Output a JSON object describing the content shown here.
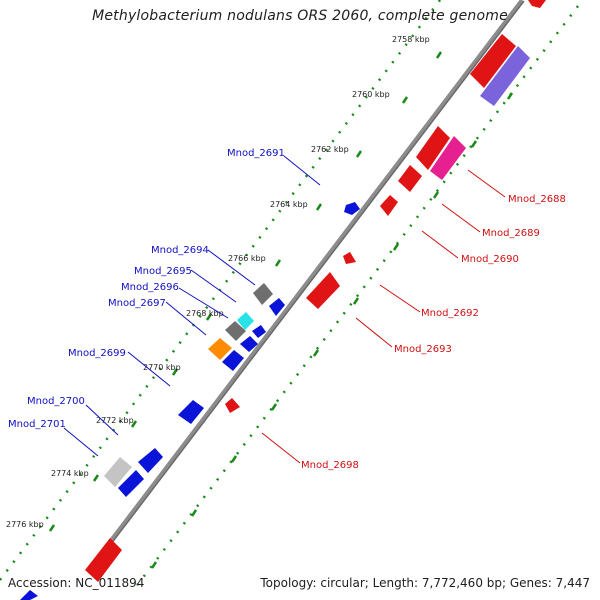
{
  "title": "Methylobacterium nodulans ORS 2060, complete genome",
  "footer": {
    "accession": "Accession: NC_011894",
    "topology": "Topology: circular; Length: 7,772,460 bp; Genes: 7,447"
  },
  "scale_ticks": [
    "2758 kbp",
    "2760 kbp",
    "2762 kbp",
    "2764 kbp",
    "2766 kbp",
    "2768 kbp",
    "2770 kbp",
    "2772 kbp",
    "2774 kbp",
    "2776 kbp"
  ],
  "gene_labels_left": [
    "Mnod_2691",
    "Mnod_2694",
    "Mnod_2695",
    "Mnod_2696",
    "Mnod_2697",
    "Mnod_2699",
    "Mnod_2700",
    "Mnod_2701"
  ],
  "gene_labels_right": [
    "Mnod_2688",
    "Mnod_2689",
    "Mnod_2690",
    "Mnod_2692",
    "Mnod_2693",
    "Mnod_2698"
  ],
  "colors": {
    "forward_label": "#1010c0",
    "reverse_label": "#d01010",
    "forward_gene": "#0a14d8",
    "reverse_gene": "#e01414",
    "dots": "#1a8a1a",
    "backbone": "#8c8c8c",
    "gray_gene": "#6e6e6e",
    "light_gray_gene": "#c4c4c4",
    "cyan_gene": "#27e3e8",
    "orange_gene": "#ff8c00",
    "magenta_gene": "#e62090",
    "violet_gene": "#7b63dc"
  }
}
